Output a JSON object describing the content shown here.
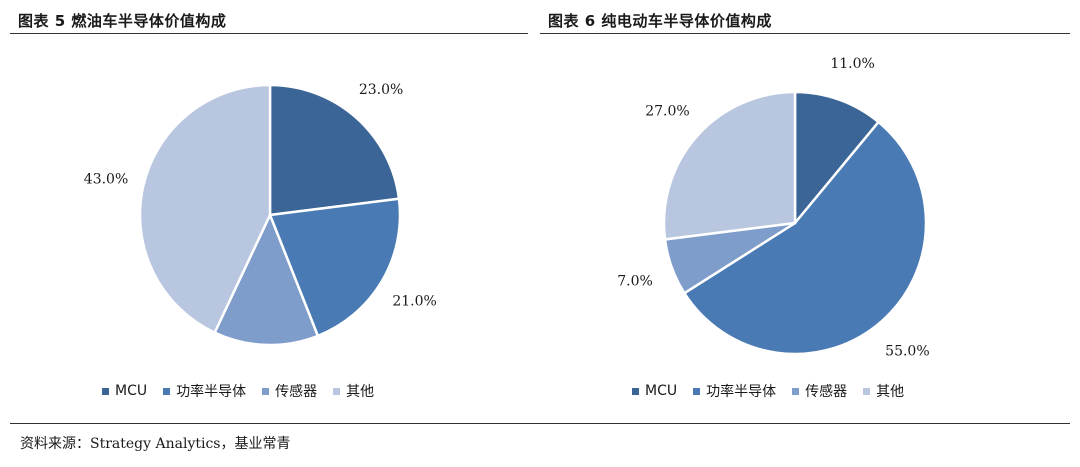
{
  "chart_data": [
    {
      "type": "pie",
      "title": "图表 5 燃油车半导体价值构成",
      "categories": [
        "MCU",
        "功率半导体",
        "传感器",
        "其他"
      ],
      "values": [
        23.0,
        21.0,
        13.0,
        43.0
      ],
      "value_labels": [
        "23.0%",
        "21.0%",
        "13.0%",
        "43.0%"
      ],
      "colors": [
        "#3b6596",
        "#4a7ab4",
        "#7f9dcb",
        "#b8c6e0"
      ],
      "legend_position": "bottom"
    },
    {
      "type": "pie",
      "title": "图表 6 纯电动车半导体价值构成",
      "categories": [
        "MCU",
        "功率半导体",
        "传感器",
        "其他"
      ],
      "values": [
        11.0,
        55.0,
        7.0,
        27.0
      ],
      "value_labels": [
        "11.0%",
        "55.0%",
        "7.0%",
        "27.0%"
      ],
      "colors": [
        "#3b6596",
        "#4a7ab4",
        "#7f9dcb",
        "#b8c6e0"
      ],
      "legend_position": "bottom"
    }
  ],
  "source": "资料来源：Strategy Analytics，基业常青"
}
